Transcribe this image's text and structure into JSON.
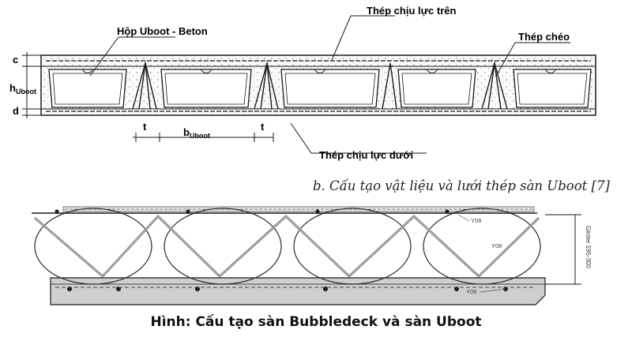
{
  "top_diagram": {
    "labels": {
      "uboot_box": "Hộp Uboot - Beton",
      "top_rebar": "Thép chịu lực trên",
      "diagonal_rebar": "Thép chéo",
      "bottom_rebar": "Thép chịu lực dưới"
    },
    "dimensions": {
      "c": "c",
      "h_main": "h",
      "h_sub": "Uboot",
      "d": "d",
      "t_left": "t",
      "b_main": "b",
      "b_sub": "Uboot",
      "t_right": "t"
    },
    "caption": "b. Cấu tạo vật liệu và lưới thép sàn Uboot [7]"
  },
  "bottom_diagram": {
    "labels": {
      "bar_top": "Y08",
      "bar_mid": "Y08",
      "bar_bottom": "Y08",
      "dimension": "Girder 195-300"
    }
  },
  "main_caption": "Hình: Cấu tạo sàn Bubbledeck và sàn Uboot",
  "colors": {
    "line": "#1a1a1a",
    "concrete_fill": "#f4f4f4",
    "plank_fill": "#c8c8c8",
    "mesh": "#7a7a7a"
  }
}
